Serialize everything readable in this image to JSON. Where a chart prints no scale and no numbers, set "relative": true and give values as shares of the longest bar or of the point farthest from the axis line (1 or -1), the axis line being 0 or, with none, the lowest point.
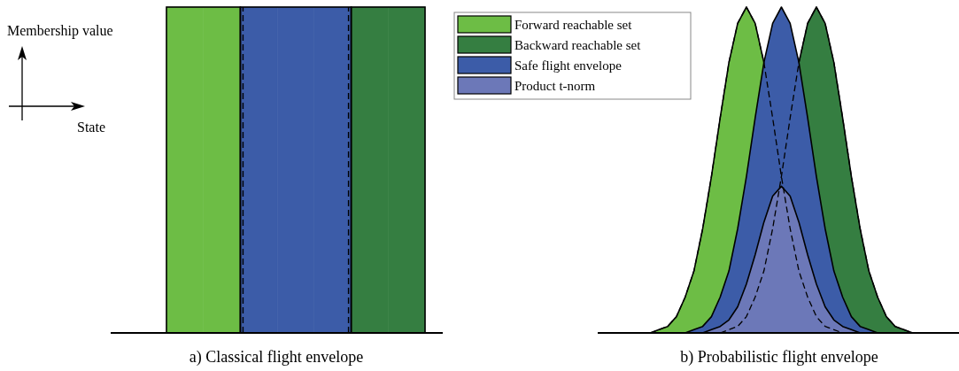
{
  "chart_data": [
    {
      "type": "bar",
      "relative": true,
      "xlabel": "a) Classical flight envelope",
      "ylabel": "Membership value",
      "annotations": [
        "State"
      ],
      "categories": [
        null,
        null,
        null,
        null,
        null,
        null,
        null
      ],
      "values": [
        1,
        1,
        1,
        1,
        1,
        1,
        1
      ],
      "colors": [
        "#6dbd45",
        "#6dbd45",
        "#3c5ca8",
        "#3c5ca8",
        "#3c5ca8",
        "#357e41",
        "#357e41"
      ]
    },
    {
      "type": "area",
      "relative": true,
      "xlabel": "b) Probabilistic flight envelope",
      "legend": "top left",
      "categories": [
        null,
        null,
        null,
        null,
        null,
        null,
        null,
        null,
        null,
        null,
        null,
        null,
        null,
        null,
        null,
        null,
        null,
        null,
        null,
        null,
        null,
        null,
        null,
        null,
        null,
        null,
        null,
        null,
        null,
        null,
        null,
        null,
        null,
        null,
        null,
        null,
        null,
        null,
        null,
        null,
        null,
        null
      ],
      "series": [
        {
          "name": "Forward reachable set",
          "color": "#6dbd45",
          "values": [
            null,
            null,
            null,
            null,
            null,
            null,
            0,
            0.01,
            0.02,
            0.05,
            0.11,
            0.19,
            0.32,
            0.48,
            0.66,
            0.83,
            0.95,
            1,
            0.95,
            0.83,
            0.66,
            0.48,
            0.32,
            0.19,
            0.11,
            0.05,
            0.02,
            0.01,
            0,
            null,
            null,
            null,
            null,
            null,
            null,
            null,
            null,
            null,
            null,
            null,
            null,
            null
          ]
        },
        {
          "name": "Backward reachable set",
          "color": "#357e41",
          "values": [
            null,
            null,
            null,
            null,
            null,
            null,
            null,
            null,
            null,
            null,
            null,
            null,
            null,
            null,
            0,
            0.01,
            0.02,
            0.05,
            0.11,
            0.19,
            0.32,
            0.48,
            0.66,
            0.83,
            0.95,
            1,
            0.95,
            0.83,
            0.66,
            0.48,
            0.32,
            0.19,
            0.11,
            0.05,
            0.02,
            0.01,
            0,
            null,
            null,
            null,
            null,
            null
          ]
        },
        {
          "name": "Safe flight envelope",
          "color": "#3c5ca8",
          "values": [
            null,
            null,
            null,
            null,
            null,
            null,
            null,
            null,
            null,
            null,
            0,
            0.01,
            0.02,
            0.05,
            0.11,
            0.19,
            0.32,
            0.48,
            0.66,
            0.83,
            0.95,
            1,
            0.95,
            0.83,
            0.66,
            0.48,
            0.32,
            0.19,
            0.11,
            0.05,
            0.02,
            0.01,
            0,
            null,
            null,
            null,
            null,
            null,
            null,
            null,
            null,
            null
          ]
        },
        {
          "name": "Product t-norm",
          "color": "#6c78b8",
          "values": [
            null,
            null,
            null,
            null,
            null,
            null,
            null,
            null,
            null,
            null,
            null,
            null,
            0,
            0.01,
            0.02,
            0.04,
            0.08,
            0.15,
            0.24,
            0.34,
            0.42,
            0.45,
            0.42,
            0.34,
            0.24,
            0.15,
            0.08,
            0.04,
            0.02,
            0.01,
            0,
            null,
            null,
            null,
            null,
            null,
            null,
            null,
            null,
            null,
            null,
            null
          ]
        }
      ]
    }
  ]
}
